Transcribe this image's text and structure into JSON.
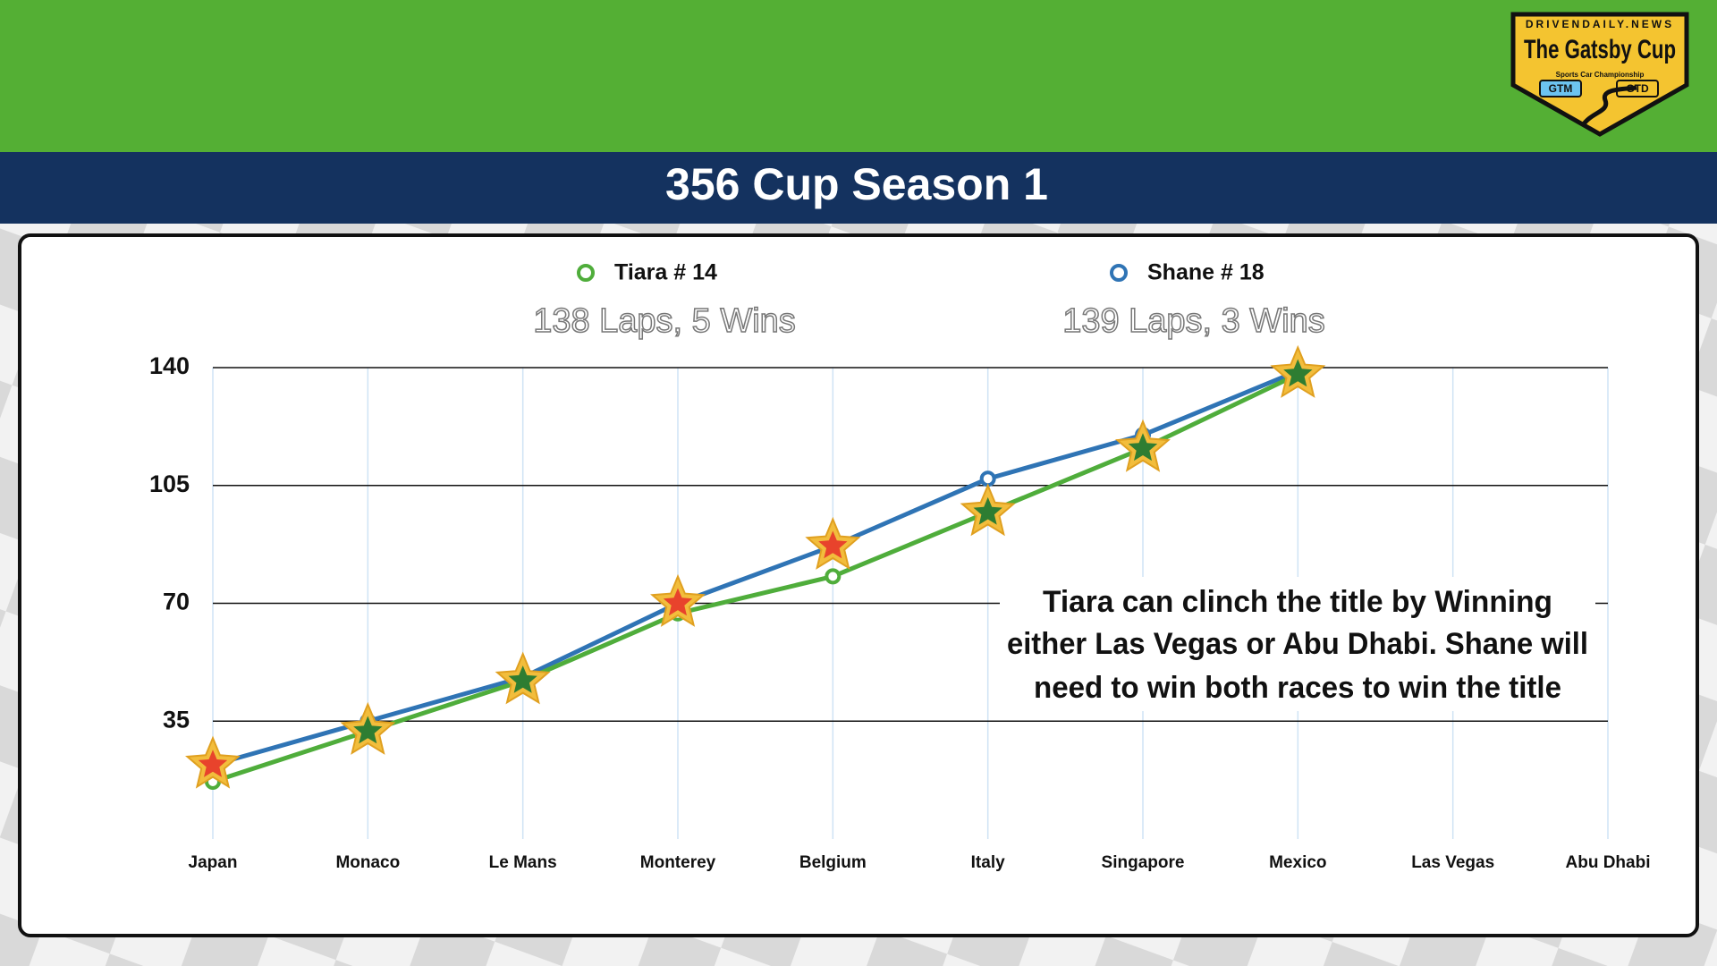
{
  "header": {
    "title": "356 Cup Season 1"
  },
  "logo": {
    "site": "DRIVENDAILY.NEWS",
    "name": "The Gatsby Cup",
    "tagline": "Sports Car Championship",
    "classes": [
      "GTM",
      "GTD"
    ]
  },
  "chart_data": {
    "type": "line",
    "categories": [
      "Japan",
      "Monaco",
      "Le Mans",
      "Monterey",
      "Belgium",
      "Italy",
      "Singapore",
      "Mexico",
      "Las Vegas",
      "Abu Dhabi"
    ],
    "series": [
      {
        "name": "Tiara # 14",
        "summary": "138 Laps, 5 Wins",
        "color": "#4fad3b",
        "win_color": "#2e7d32",
        "values": [
          17,
          32,
          47,
          67,
          78,
          97,
          116,
          138,
          null,
          null
        ],
        "wins": [
          false,
          true,
          true,
          false,
          false,
          true,
          true,
          true,
          null,
          null
        ]
      },
      {
        "name": "Shane # 18",
        "summary": "139 Laps, 3 Wins",
        "color": "#2f74b5",
        "win_color": "#e8432c",
        "values": [
          22,
          35,
          48,
          70,
          87,
          107,
          120,
          139,
          null,
          null
        ],
        "wins": [
          true,
          false,
          false,
          true,
          true,
          false,
          false,
          false,
          null,
          null
        ]
      }
    ],
    "ylim": [
      0,
      140
    ],
    "yticks": [
      35,
      70,
      105,
      140
    ],
    "grid": true,
    "annotation": [
      "Tiara can clinch the title by Winning",
      "either Las Vegas or Abu Dhabi. Shane will",
      "need to win both races to win the title"
    ]
  }
}
